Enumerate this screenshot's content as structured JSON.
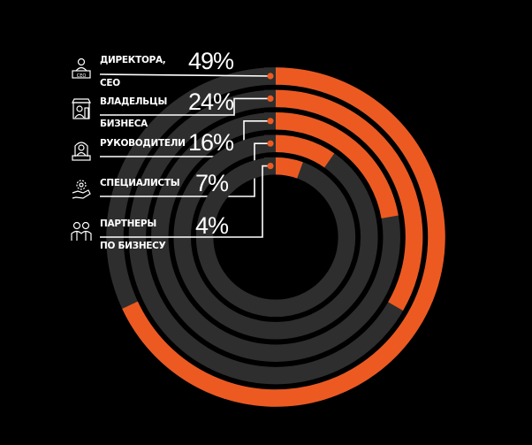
{
  "chart_data": {
    "type": "radial-bar",
    "categories": [
      "ДИРЕКТОРА, СЕО",
      "ВЛАДЕЛЬЦЫ БИЗНЕСА",
      "РУКОВОДИТЕЛИ",
      "СПЕЦИАЛИСТЫ",
      "ПАРТНЕРЫ ПО БИЗНЕСУ"
    ],
    "values": [
      49,
      24,
      16,
      7,
      4
    ],
    "value_labels": [
      "49%",
      "24%",
      "16%",
      "7%",
      "4%"
    ],
    "label_lines": [
      [
        "ДИРЕКТОРА,",
        "СЕО"
      ],
      [
        "ВЛАДЕЛЬЦЫ",
        "БИЗНЕСА"
      ],
      [
        "РУКОВОДИТЕЛИ",
        ""
      ],
      [
        "СПЕЦИАЛИСТЫ",
        ""
      ],
      [
        "ПАРТНЕРЫ",
        "ПО БИЗНЕСУ"
      ]
    ],
    "icons": [
      "ceo-icon",
      "shop-owner-icon",
      "manager-icon",
      "specialists-icon",
      "partners-icon"
    ],
    "colors": {
      "value": "#ec5a22",
      "track": "#2e2e2e",
      "background": "#000000",
      "text": "#ffffff"
    }
  }
}
